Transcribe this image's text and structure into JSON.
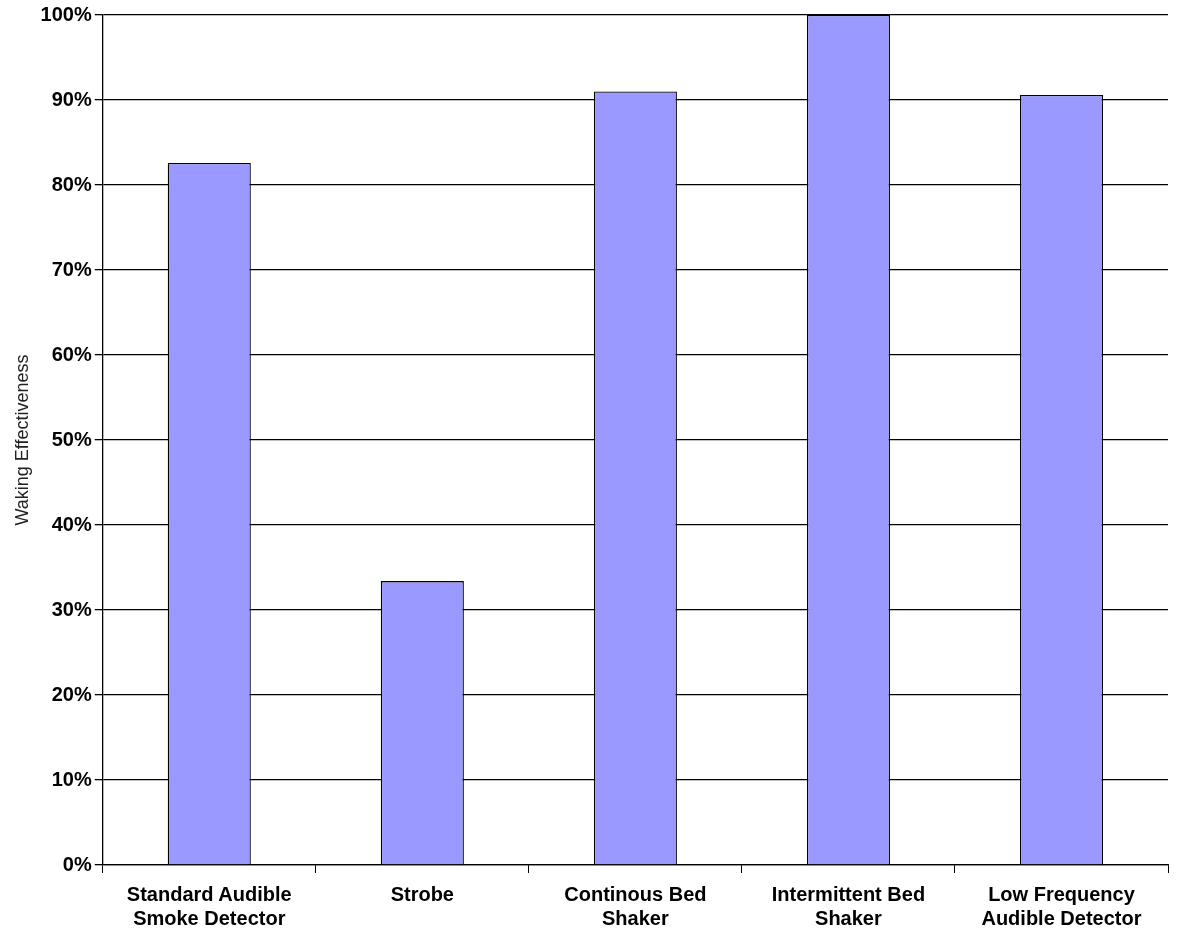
{
  "chart_data": {
    "type": "bar",
    "ylabel": "Waking Effectiveness",
    "categories": [
      "Standard Audible Smoke Detector",
      "Strobe",
      "Continous Bed Shaker",
      "Intermittent Bed Shaker",
      "Low Frequency Audible Detector"
    ],
    "values": [
      82.6,
      33.4,
      91.0,
      100,
      90.6
    ],
    "color": "#9999ff",
    "ylim": [
      0,
      100
    ],
    "yticks": [
      {
        "value": 0,
        "label": "0%"
      },
      {
        "value": 10,
        "label": "10%"
      },
      {
        "value": 20,
        "label": "20%"
      },
      {
        "value": 30,
        "label": "30%"
      },
      {
        "value": 40,
        "label": "40%"
      },
      {
        "value": 50,
        "label": "50%"
      },
      {
        "value": 60,
        "label": "60%"
      },
      {
        "value": 70,
        "label": "70%"
      },
      {
        "value": 80,
        "label": "80%"
      },
      {
        "value": 90,
        "label": "90%"
      },
      {
        "value": 100,
        "label": "100%"
      }
    ],
    "grid": "y"
  }
}
